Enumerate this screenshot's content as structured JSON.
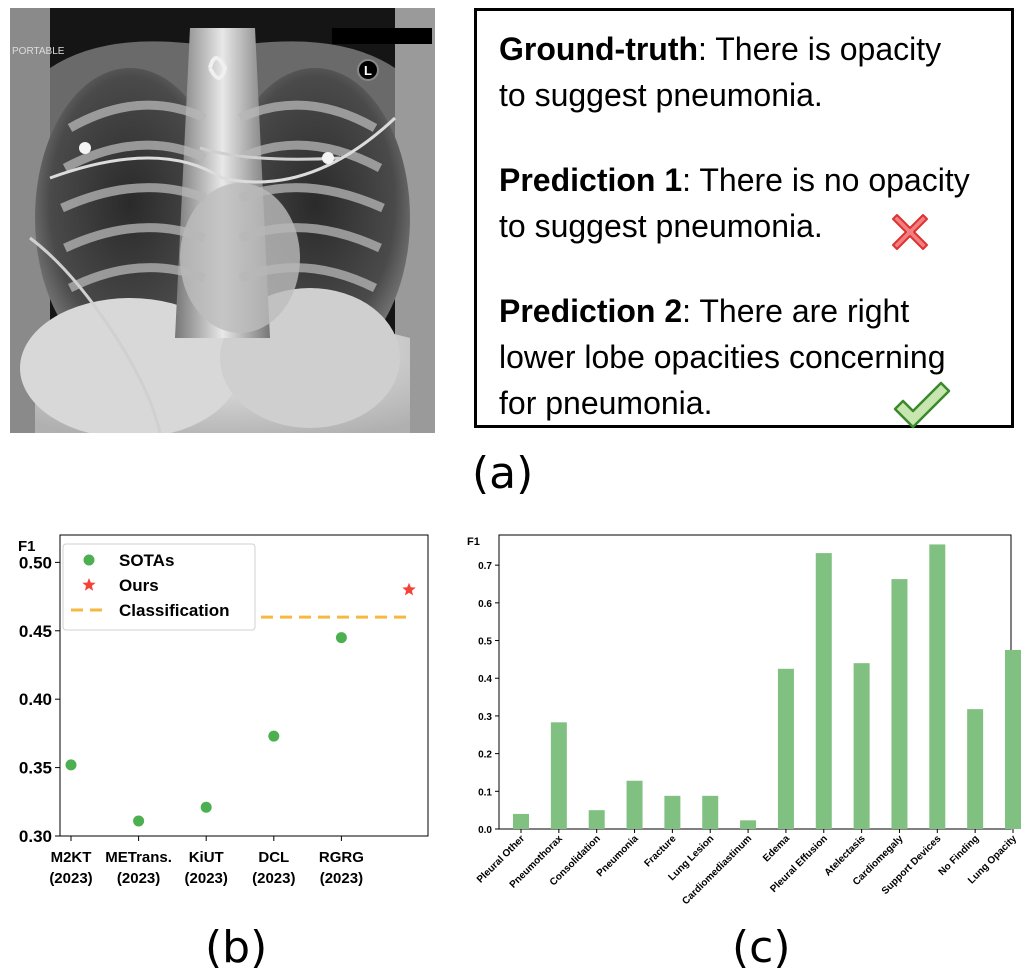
{
  "panel_a": {
    "ground_truth_label": "Ground-truth",
    "ground_truth_line1": ": There is opacity",
    "ground_truth_line2": "to suggest pneumonia.",
    "pred1_label": "Prediction 1",
    "pred1_line1": ": There is no opacity",
    "pred1_line2": "to suggest pneumonia.",
    "pred2_label": "Prediction 2",
    "pred2_line1": ": There are right",
    "pred2_line2": "lower lobe opacities concerning",
    "pred2_line3": "for pneumonia.",
    "xray_text": {
      "portable": "PORTABLE",
      "marker": "L"
    },
    "icons": {
      "pred1": "red-cross-icon",
      "pred2": "green-check-icon"
    },
    "caption": "(a)"
  },
  "panel_b": {
    "caption": "(b)"
  },
  "panel_c": {
    "caption": "(c)"
  },
  "chart_data": [
    {
      "type": "scatter",
      "ylabel": "F1",
      "ylim": [
        0.3,
        0.52
      ],
      "yticks": [
        "0.30",
        "0.35",
        "0.40",
        "0.45",
        "0.50"
      ],
      "categories": [
        "M2KT\n(2023)",
        "METrans.\n(2023)",
        "KiUT\n(2023)",
        "DCL\n(2023)",
        "RGRG\n(2023)"
      ],
      "tick_lines": [
        [
          "M2KT",
          "(2023)"
        ],
        [
          "METrans.",
          "(2023)"
        ],
        [
          "KiUT",
          "(2023)"
        ],
        [
          "DCL",
          "(2023)"
        ],
        [
          "RGRG",
          "(2023)"
        ]
      ],
      "series": [
        {
          "name": "SOTAs",
          "marker": "circle",
          "color": "#4caf50",
          "x": [
            0,
            1,
            2,
            3,
            4
          ],
          "values": [
            0.352,
            0.311,
            0.321,
            0.373,
            0.445
          ]
        },
        {
          "name": "Ours",
          "marker": "star",
          "color": "#f44336",
          "x": [
            5
          ],
          "values": [
            0.48
          ]
        },
        {
          "name": "Classification",
          "type": "hline",
          "style": "dashed",
          "color": "#f5b942",
          "value": 0.46
        }
      ],
      "legend_position": "top-left",
      "grid": false
    },
    {
      "type": "bar",
      "ylabel": "F1",
      "ylim": [
        0,
        0.78
      ],
      "yticks": [
        "0.0",
        "0.1",
        "0.2",
        "0.3",
        "0.4",
        "0.5",
        "0.6",
        "0.7"
      ],
      "color": "#80c080",
      "categories": [
        "Pleural Other",
        "Pneumothorax",
        "Consolidation",
        "Pneumonia",
        "Fracture",
        "Lung Lesion",
        "Cardiomediastinum",
        "Edema",
        "Pleural Effusion",
        "Atelectasis",
        "Cardiomegaly",
        "Support Devices",
        "No Finding",
        "Lung Opacity"
      ],
      "values": [
        0.04,
        0.283,
        0.05,
        0.128,
        0.088,
        0.088,
        0.023,
        0.425,
        0.732,
        0.44,
        0.663,
        0.755,
        0.318,
        0.475
      ],
      "grid": false
    }
  ]
}
